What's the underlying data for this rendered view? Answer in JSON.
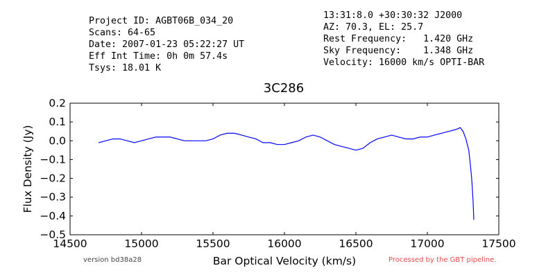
{
  "header": {
    "left": [
      "Project ID: AGBT06B_034_20",
      "Scans: 64-65",
      "Date: 2007-01-23 05:22:27 UT",
      "Eff Int Time: 0h 0m 57.4s",
      "Tsys: 18.01 K"
    ],
    "right": [
      "13:31:8.0 +30:30:32 J2000",
      "AZ: 70.3, EL: 25.7",
      "Rest Frequency:   1.420 GHz",
      "Sky Frequency:    1.348 GHz",
      "Velocity: 16000 km/s OPTI-BAR"
    ]
  },
  "footer": {
    "version": "version bd38a28",
    "pipeline": "Processed by the GBT pipeline."
  },
  "colors": {
    "series": "#0000ff",
    "pipeline_text": "#e84a4a"
  },
  "chart_data": {
    "type": "line",
    "title": "3C286",
    "xlabel": "Bar Optical Velocity (km/s)",
    "ylabel": "Flux Density (Jy)",
    "xlim": [
      14500,
      17500
    ],
    "ylim": [
      -0.5,
      0.2
    ],
    "xticks": [
      14500,
      15000,
      15500,
      16000,
      16500,
      17000,
      17500
    ],
    "xtick_labels": [
      "14500",
      "15000",
      "15500",
      "16000",
      "16500",
      "17000",
      "17500"
    ],
    "yticks": [
      -0.5,
      -0.4,
      -0.3,
      -0.2,
      -0.1,
      0.0,
      0.1,
      0.2
    ],
    "ytick_labels": [
      "−0.5",
      "−0.4",
      "−0.3",
      "−0.2",
      "−0.1",
      "0.0",
      "0.1",
      "0.2"
    ],
    "grid": false,
    "series": [
      {
        "x": [
          14700,
          14750,
          14800,
          14850,
          14900,
          14950,
          15000,
          15050,
          15100,
          15150,
          15200,
          15250,
          15300,
          15350,
          15400,
          15450,
          15500,
          15550,
          15600,
          15650,
          15700,
          15750,
          15800,
          15850,
          15900,
          15950,
          16000,
          16050,
          16100,
          16150,
          16200,
          16250,
          16300,
          16350,
          16400,
          16450,
          16500,
          16550,
          16600,
          16650,
          16700,
          16750,
          16800,
          16850,
          16900,
          16950,
          17000,
          17050,
          17100,
          17150,
          17200,
          17230,
          17250,
          17270,
          17290,
          17300,
          17310,
          17320,
          17325
        ],
        "y": [
          -0.01,
          0.0,
          0.01,
          0.01,
          0.0,
          -0.01,
          0.0,
          0.01,
          0.02,
          0.02,
          0.02,
          0.01,
          0.0,
          0.0,
          0.0,
          0.0,
          0.01,
          0.03,
          0.04,
          0.04,
          0.03,
          0.02,
          0.01,
          -0.01,
          -0.01,
          -0.02,
          -0.02,
          -0.01,
          0.0,
          0.02,
          0.03,
          0.02,
          0.0,
          -0.02,
          -0.03,
          -0.04,
          -0.05,
          -0.04,
          -0.01,
          0.01,
          0.02,
          0.03,
          0.02,
          0.01,
          0.01,
          0.02,
          0.02,
          0.03,
          0.04,
          0.05,
          0.06,
          0.07,
          0.05,
          0.01,
          -0.05,
          -0.12,
          -0.2,
          -0.32,
          -0.42
        ]
      }
    ]
  }
}
